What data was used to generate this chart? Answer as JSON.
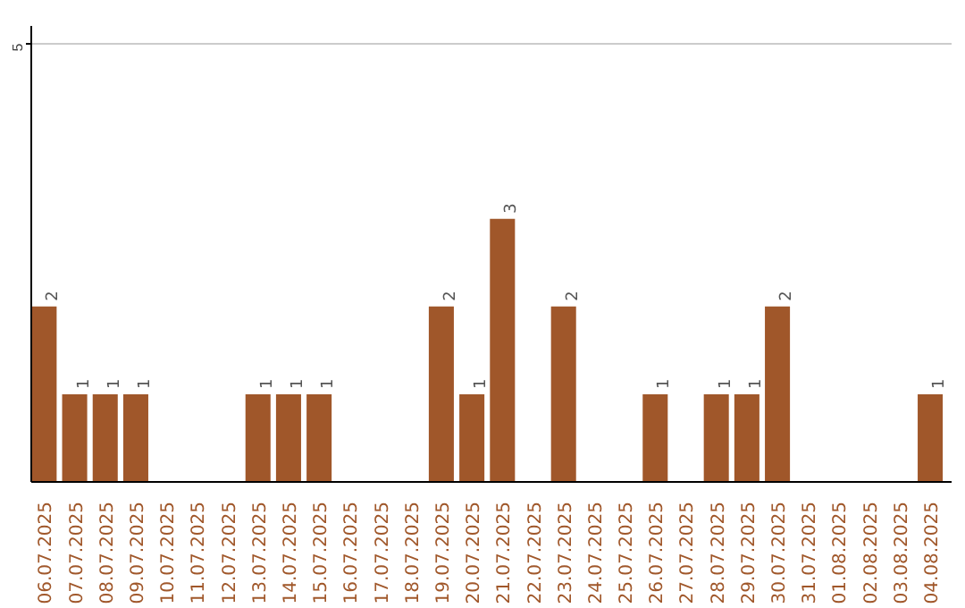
{
  "chart_data": {
    "type": "bar",
    "categories": [
      "06.07.2025",
      "07.07.2025",
      "08.07.2025",
      "09.07.2025",
      "10.07.2025",
      "11.07.2025",
      "12.07.2025",
      "13.07.2025",
      "14.07.2025",
      "15.07.2025",
      "16.07.2025",
      "17.07.2025",
      "18.07.2025",
      "19.07.2025",
      "20.07.2025",
      "21.07.2025",
      "22.07.2025",
      "23.07.2025",
      "24.07.2025",
      "25.07.2025",
      "26.07.2025",
      "27.07.2025",
      "28.07.2025",
      "29.07.2025",
      "30.07.2025",
      "31.07.2025",
      "01.08.2025",
      "02.08.2025",
      "03.08.2025",
      "04.08.2025"
    ],
    "values": [
      2,
      1,
      1,
      1,
      0,
      0,
      0,
      1,
      1,
      1,
      0,
      0,
      0,
      2,
      1,
      3,
      0,
      2,
      0,
      0,
      1,
      0,
      1,
      1,
      2,
      0,
      0,
      0,
      0,
      1
    ],
    "value_labels": [
      "2",
      "1",
      "1",
      "1",
      null,
      null,
      null,
      "1",
      "1",
      "1",
      null,
      null,
      null,
      "2",
      "1",
      "3",
      null,
      "2",
      null,
      null,
      "1",
      null,
      "1",
      "1",
      "2",
      null,
      null,
      null,
      null,
      "1"
    ],
    "color": "#a0572a",
    "ylim": [
      0,
      5.2
    ],
    "yticks": [
      5
    ],
    "grid": "y"
  }
}
